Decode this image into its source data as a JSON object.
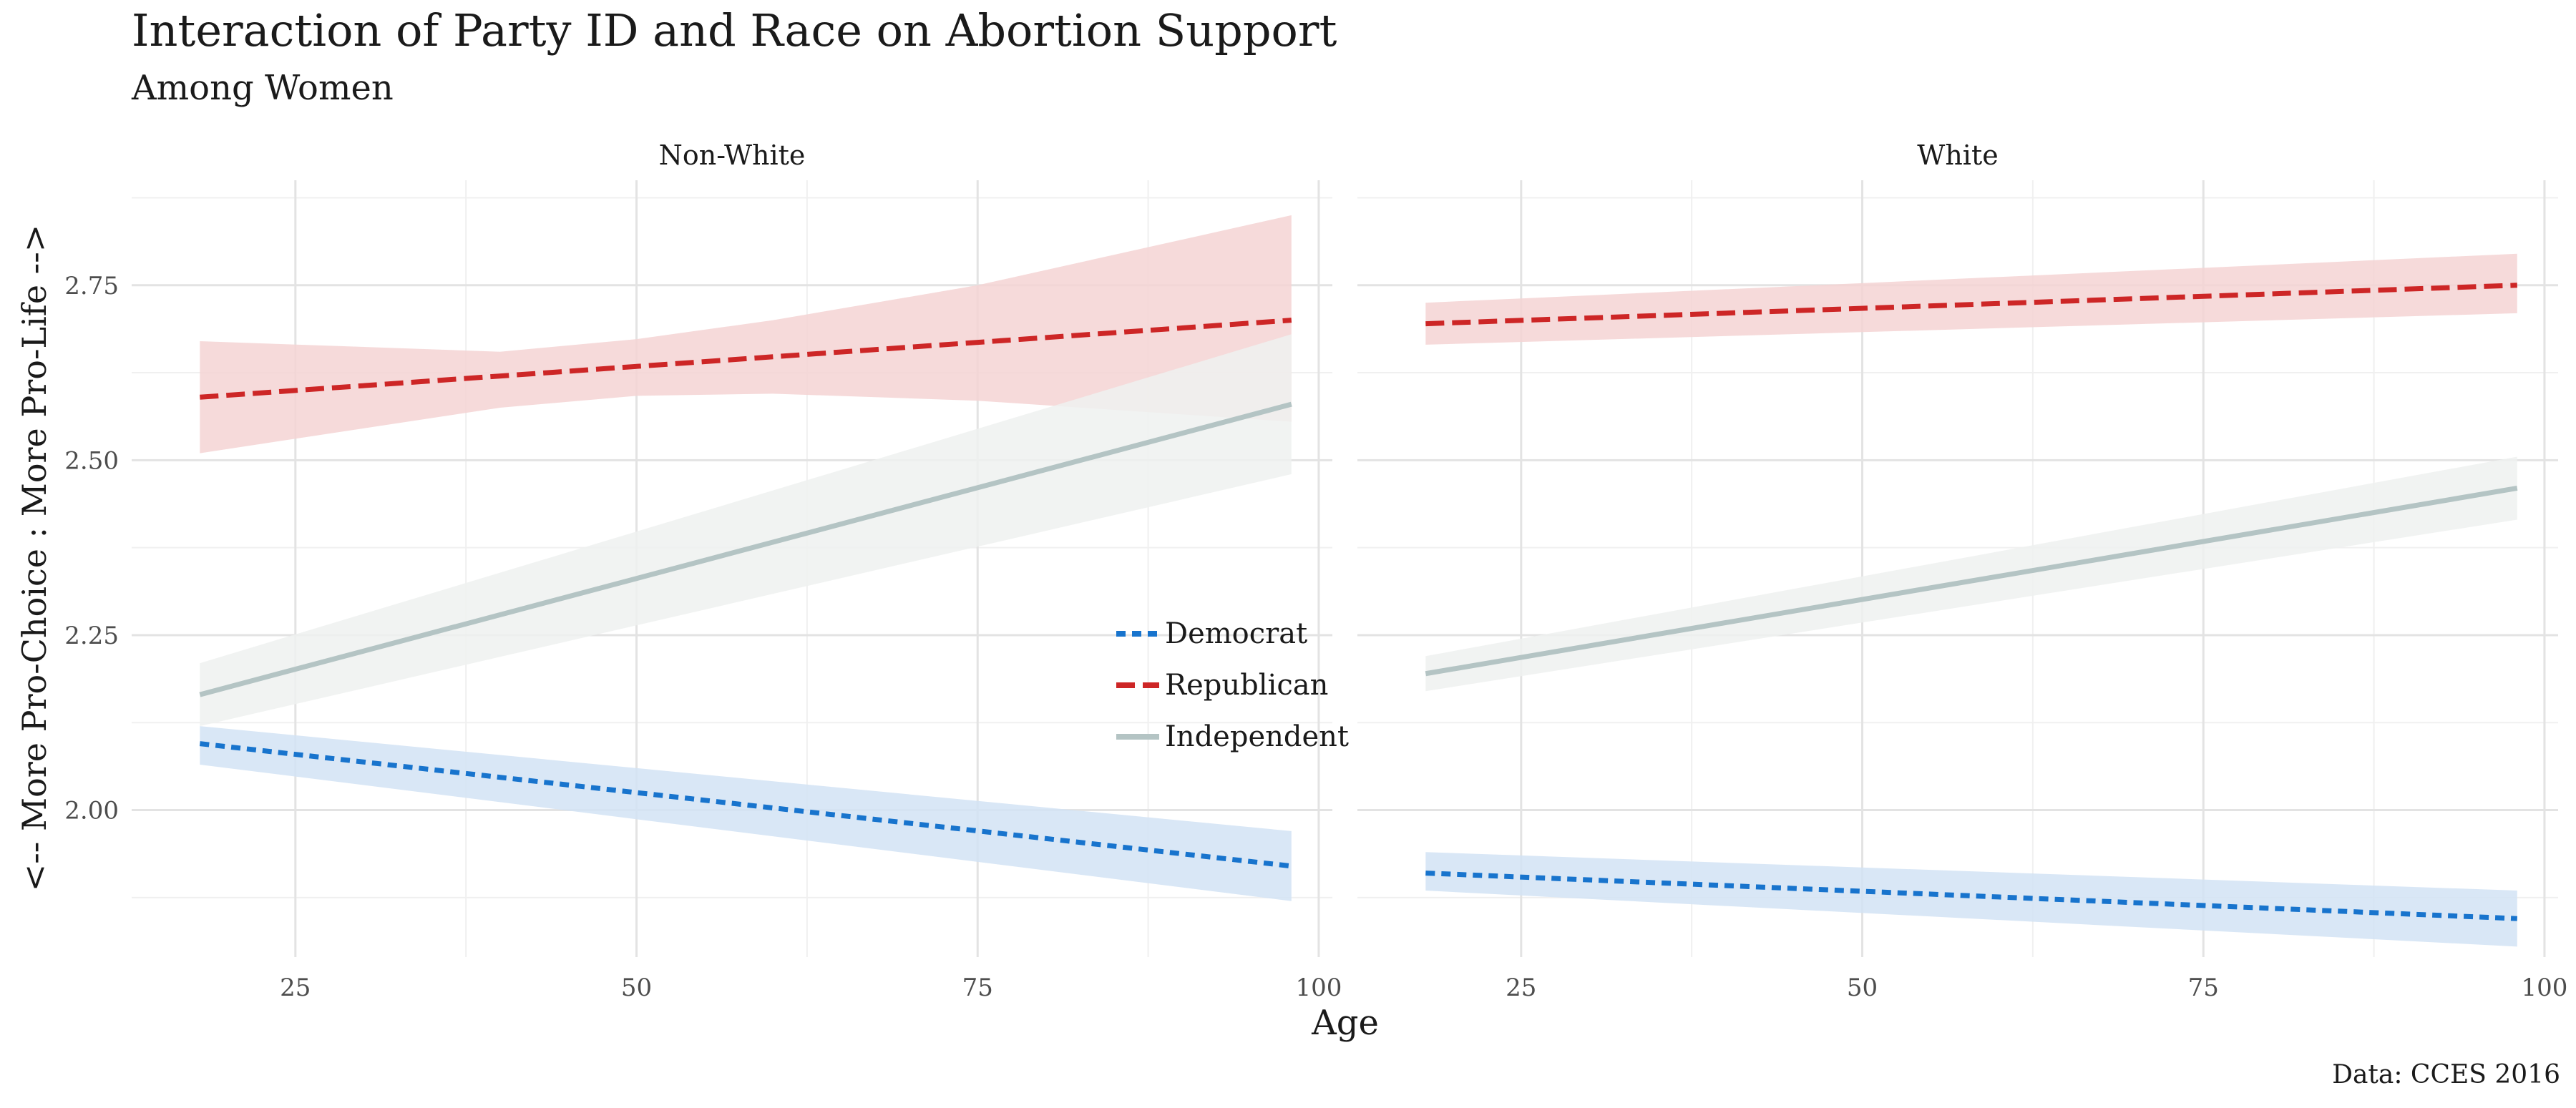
{
  "chart_data": {
    "type": "line",
    "title": "Interaction of Party ID and Race on Abortion Support",
    "subtitle": "Among Women",
    "xlabel": "Age",
    "ylabel": "<-- More Pro-Choice : More Pro-Life -->",
    "caption": "Data: CCES 2016",
    "xlim": [
      13,
      101
    ],
    "ylim": [
      1.79,
      2.9
    ],
    "x_ticks": [
      25,
      50,
      75,
      100
    ],
    "x_tick_labels": [
      "25",
      "50",
      "75",
      "100"
    ],
    "y_ticks": [
      2.0,
      2.25,
      2.5,
      2.75
    ],
    "y_tick_labels": [
      "2.00",
      "2.25",
      "2.50",
      "2.75"
    ],
    "grid": true,
    "legend_position": "inside-right",
    "colors": {
      "Democrat": "#1874cd",
      "Republican": "#cd2626",
      "Independent": "#b4c4c4"
    },
    "band_colors": {
      "Democrat": "#d2e3f5",
      "Republican": "#f5d4d4",
      "Independent": "#eef1f0"
    },
    "legend": [
      {
        "name": "Democrat",
        "dash": "dotted"
      },
      {
        "name": "Republican",
        "dash": "dashed"
      },
      {
        "name": "Independent",
        "dash": "solid"
      }
    ],
    "panels": [
      {
        "label": "Non-White",
        "series": [
          {
            "name": "Republican",
            "x": [
              18,
              98
            ],
            "y": [
              2.59,
              2.7
            ],
            "lower": [
              2.51,
              2.555
            ],
            "upper": [
              2.67,
              2.85
            ],
            "ribbon_x": [
              18,
              40,
              50,
              60,
              75,
              98
            ],
            "ribbon_lower": [
              2.51,
              2.575,
              2.592,
              2.595,
              2.585,
              2.555
            ],
            "ribbon_upper": [
              2.67,
              2.655,
              2.673,
              2.7,
              2.75,
              2.85
            ]
          },
          {
            "name": "Independent",
            "x": [
              18,
              98
            ],
            "y": [
              2.165,
              2.58
            ],
            "lower": [
              2.12,
              2.48
            ],
            "upper": [
              2.21,
              2.68
            ]
          },
          {
            "name": "Democrat",
            "x": [
              18,
              98
            ],
            "y": [
              2.095,
              1.92
            ],
            "lower": [
              2.065,
              1.87
            ],
            "upper": [
              2.12,
              1.97
            ]
          }
        ]
      },
      {
        "label": "White",
        "series": [
          {
            "name": "Republican",
            "x": [
              18,
              98
            ],
            "y": [
              2.695,
              2.75
            ],
            "lower": [
              2.665,
              2.71
            ],
            "upper": [
              2.725,
              2.795
            ]
          },
          {
            "name": "Independent",
            "x": [
              18,
              98
            ],
            "y": [
              2.195,
              2.46
            ],
            "lower": [
              2.17,
              2.415
            ],
            "upper": [
              2.22,
              2.505
            ]
          },
          {
            "name": "Democrat",
            "x": [
              18,
              98
            ],
            "y": [
              1.91,
              1.845
            ],
            "lower": [
              1.885,
              1.805
            ],
            "upper": [
              1.94,
              1.885
            ]
          }
        ]
      }
    ]
  }
}
